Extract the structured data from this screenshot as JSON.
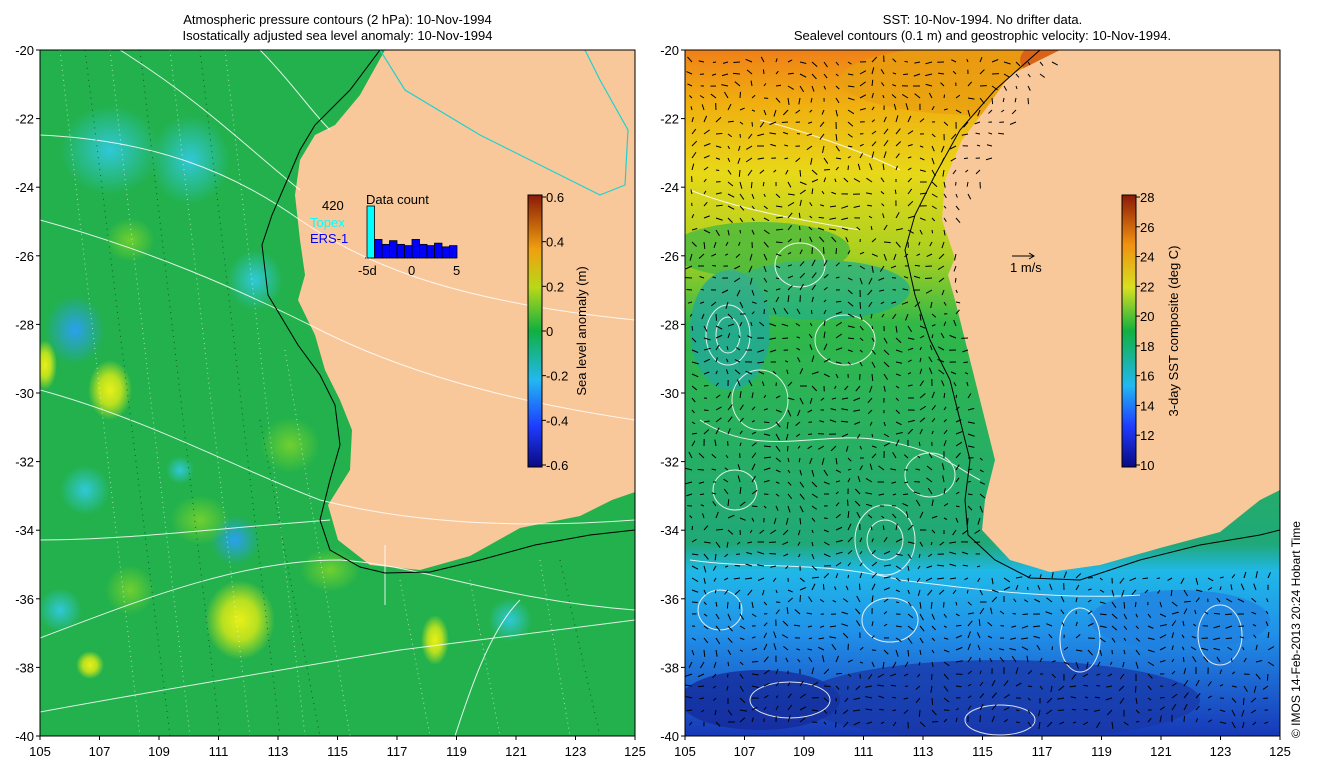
{
  "left_panel": {
    "title_line1": "Atmospheric pressure contours (2 hPa): 10-Nov-1994",
    "title_line2": "Isostatically adjusted sea level anomaly: 10-Nov-1994",
    "y_ticks": [
      "-20",
      "-22",
      "-24",
      "-26",
      "-28",
      "-30",
      "-32",
      "-34",
      "-36",
      "-38",
      "-40"
    ],
    "x_ticks": [
      "105",
      "107",
      "109",
      "111",
      "113",
      "115",
      "117",
      "119",
      "121",
      "123",
      "125"
    ],
    "colorbar": {
      "label": "Sea level anomaly (m)",
      "ticks": [
        "0.6",
        "0.4",
        "0.2",
        "0",
        "-0.2",
        "-0.4",
        "-0.6"
      ]
    },
    "inset": {
      "title": "Data count",
      "count": "420",
      "sat1": "Topex",
      "sat2": "ERS-1",
      "x_labels": [
        "-5d",
        "0",
        "5"
      ],
      "bar_values": [
        420,
        150,
        110,
        140,
        110,
        100,
        150,
        110,
        100,
        120,
        90,
        100
      ],
      "colors": {
        "topex": "#00ffff",
        "ers1": "#0000ff"
      }
    }
  },
  "right_panel": {
    "title_line1": "SST: 10-Nov-1994. No drifter data.",
    "title_line2": "Sealevel contours (0.1 m) and geostrophic velocity: 10-Nov-1994.",
    "y_ticks": [
      "-20",
      "-22",
      "-24",
      "-26",
      "-28",
      "-30",
      "-32",
      "-34",
      "-36",
      "-38",
      "-40"
    ],
    "x_ticks": [
      "105",
      "107",
      "109",
      "111",
      "113",
      "115",
      "117",
      "119",
      "121",
      "123",
      "125"
    ],
    "colorbar": {
      "label": "3-day SST composite (deg C)",
      "ticks": [
        "28",
        "26",
        "24",
        "22",
        "20",
        "18",
        "16",
        "14",
        "12",
        "10"
      ]
    },
    "scale_arrow_label": "1 m/s"
  },
  "credit": "© IMOS 14-Feb-2013 20:24 Hobart Time",
  "colors": {
    "land": "#f9c89a",
    "ocean_green": "#22b14c",
    "cyan_line": "#20d0d0"
  }
}
